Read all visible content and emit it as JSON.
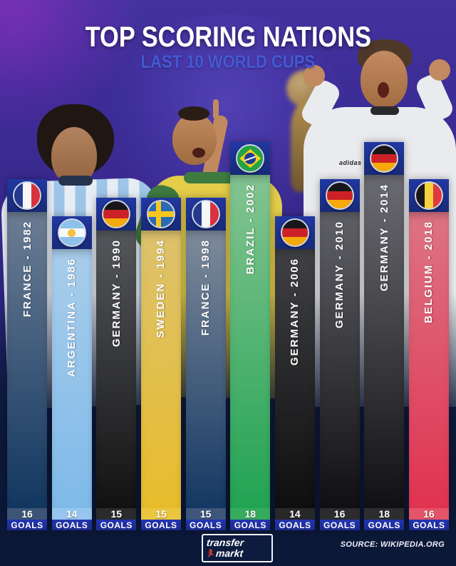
{
  "header": {
    "title": "TOP SCORING NATIONS",
    "subtitle": "LAST 10 WORLD CUPS"
  },
  "goals_label": "GOALS",
  "footer": {
    "source": "SOURCE: WIKIPEDIA.ORG",
    "logo_line1": "transfer",
    "logo_line2": "markt"
  },
  "photos": {
    "mueller_jersey_text": "adidas"
  },
  "colors": {
    "background_top": "#44339f",
    "background_bottom": "#0c1838",
    "subtitle_blue": "#4459d4",
    "header_blue": "#1d2f8e",
    "goals_band_blue": "#1f2f9f",
    "title_white": "#ffffff"
  },
  "chart_data": {
    "type": "bar",
    "title": "TOP SCORING NATIONS",
    "subtitle": "LAST 10 WORLD CUPS",
    "ylabel": "GOALS",
    "ylim": [
      0,
      18
    ],
    "grid": false,
    "legend_position": "none",
    "categories": [
      "FRANCE - 1982",
      "ARGENTINA - 1986",
      "GERMANY - 1990",
      "SWEDEN - 1994",
      "FRANCE - 1998",
      "BRAZIL - 2002",
      "GERMANY - 2006",
      "GERMANY - 2010",
      "GERMANY - 2014",
      "BELGIUM - 2018"
    ],
    "values": [
      16,
      14,
      15,
      15,
      15,
      18,
      14,
      16,
      18,
      16
    ],
    "bars": [
      {
        "label": "FRANCE - 1982",
        "country": "France",
        "year": "1982",
        "goals": 16,
        "flag": "france",
        "body_top": "#6c7d94",
        "body_bottom": "#123760",
        "num_bg": "#3c5577"
      },
      {
        "label": "ARGENTINA - 1986",
        "country": "Argentina",
        "year": "1986",
        "goals": 14,
        "flag": "argentina",
        "body_top": "#a9cdeb",
        "body_bottom": "#7fbae9",
        "num_bg": "#96c6ee"
      },
      {
        "label": "GERMANY - 1990",
        "country": "Germany",
        "year": "1990",
        "goals": 15,
        "flag": "germany",
        "body_top": "#55575c",
        "body_bottom": "#121212",
        "num_bg": "#2b2b2d"
      },
      {
        "label": "SWEDEN - 1994",
        "country": "Sweden",
        "year": "1994",
        "goals": 15,
        "flag": "sweden",
        "body_top": "#ddc26e",
        "body_bottom": "#e7bc2c",
        "num_bg": "#ecc53e"
      },
      {
        "label": "FRANCE - 1998",
        "country": "France",
        "year": "1998",
        "goals": 15,
        "flag": "france",
        "body_top": "#7f8b9b",
        "body_bottom": "#143863",
        "num_bg": "#3e567a"
      },
      {
        "label": "BRAZIL - 2002",
        "country": "Brazil",
        "year": "2002",
        "goals": 18,
        "flag": "brazil",
        "body_top": "#84c492",
        "body_bottom": "#22a352",
        "num_bg": "#36ab5e"
      },
      {
        "label": "GERMANY - 2006",
        "country": "Germany",
        "year": "2006",
        "goals": 14,
        "flag": "germany",
        "body_top": "#404145",
        "body_bottom": "#0e0e0e",
        "num_bg": "#282829"
      },
      {
        "label": "GERMANY - 2010",
        "country": "Germany",
        "year": "2010",
        "goals": 16,
        "flag": "germany",
        "body_top": "#606167",
        "body_bottom": "#101012",
        "num_bg": "#2c2c2e"
      },
      {
        "label": "GERMANY - 2014",
        "country": "Germany",
        "year": "2014",
        "goals": 18,
        "flag": "germany",
        "body_top": "#6b6c72",
        "body_bottom": "#111113",
        "num_bg": "#2d2d2f"
      },
      {
        "label": "BELGIUM - 2018",
        "country": "Belgium",
        "year": "2018",
        "goals": 16,
        "flag": "belgium",
        "body_top": "#dd7484",
        "body_bottom": "#e03350",
        "num_bg": "#e55468"
      }
    ]
  }
}
